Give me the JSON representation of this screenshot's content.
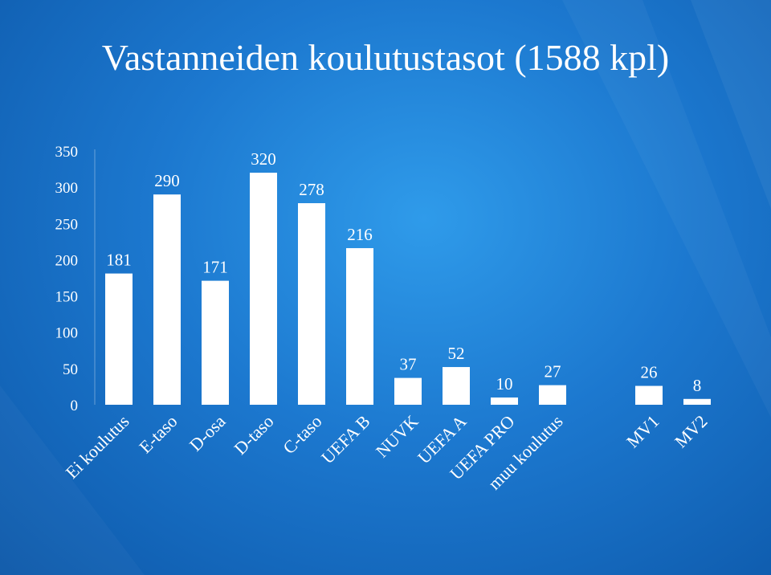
{
  "chart_data": {
    "type": "bar",
    "title": "Vastanneiden koulutustasot (1588 kpl)",
    "categories": [
      "Ei koulutus",
      "E-taso",
      "D-osa",
      "D-taso",
      "C-taso",
      "UEFA B",
      "NUVK",
      "UEFA A",
      "UEFA PRO",
      "muu koulutus",
      "",
      "MV1",
      "MV2"
    ],
    "values": [
      181,
      290,
      171,
      320,
      278,
      216,
      37,
      52,
      10,
      27,
      null,
      26,
      8
    ],
    "yticks": [
      "0",
      "50",
      "100",
      "150",
      "200",
      "250",
      "300",
      "350"
    ],
    "ylim": [
      0,
      350
    ],
    "grid": false,
    "legend": "none",
    "bar_color": "#ffffff",
    "background_color": "#1c78cf"
  }
}
